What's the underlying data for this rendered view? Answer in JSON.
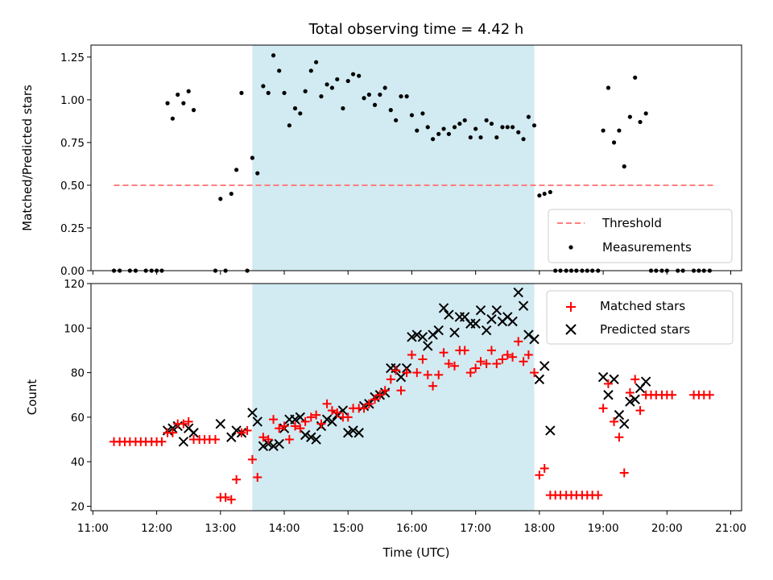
{
  "title": "Total observing time = 4.42 h",
  "x_axis": {
    "label": "Time (UTC)",
    "min": 10.97,
    "max": 21.17,
    "ticks": [
      11,
      12,
      13,
      14,
      15,
      16,
      17,
      18,
      19,
      20,
      21
    ],
    "tick_labels": [
      "11:00",
      "12:00",
      "13:00",
      "14:00",
      "15:00",
      "16:00",
      "17:00",
      "18:00",
      "19:00",
      "20:00",
      "21:00"
    ]
  },
  "observing_window": {
    "start": 13.5,
    "end": 17.92,
    "color": "#add8e6"
  },
  "colors": {
    "threshold": "#ff7f7f",
    "measurements": "#000000",
    "matched": "#ff0000",
    "predicted": "#000000"
  },
  "chart_data": [
    {
      "type": "scatter",
      "ylabel": "Matched/Predicted stars",
      "ylim": [
        0,
        1.32
      ],
      "yticks": [
        0,
        0.25,
        0.5,
        0.75,
        1.0,
        1.25
      ],
      "ytick_labels": [
        "0.00",
        "0.25",
        "0.50",
        "0.75",
        "1.00",
        "1.25"
      ],
      "threshold": {
        "name": "Threshold",
        "value": 0.5,
        "x_start": 11.33,
        "x_end": 20.75
      },
      "legend": {
        "placement": "lower-right",
        "entries": [
          "Threshold",
          "Measurements"
        ]
      },
      "series": [
        {
          "name": "Measurements",
          "x": [
            11.33,
            11.42,
            11.58,
            11.67,
            11.83,
            11.92,
            12.0,
            12.08,
            12.17,
            12.25,
            12.33,
            12.42,
            12.5,
            12.58,
            12.92,
            13.0,
            13.08,
            13.17,
            13.25,
            13.33,
            13.42,
            13.5,
            13.58,
            13.67,
            13.75,
            13.83,
            13.92,
            14.0,
            14.08,
            14.17,
            14.25,
            14.33,
            14.42,
            14.5,
            14.58,
            14.67,
            14.75,
            14.83,
            14.92,
            15.0,
            15.08,
            15.17,
            15.25,
            15.33,
            15.42,
            15.5,
            15.58,
            15.67,
            15.75,
            15.83,
            15.92,
            16.0,
            16.08,
            16.17,
            16.25,
            16.33,
            16.42,
            16.5,
            16.58,
            16.67,
            16.75,
            16.83,
            16.92,
            17.0,
            17.08,
            17.17,
            17.25,
            17.33,
            17.42,
            17.5,
            17.58,
            17.67,
            17.75,
            17.83,
            17.92,
            18.0,
            18.08,
            18.17,
            18.25,
            18.33,
            18.42,
            18.5,
            18.58,
            18.67,
            18.75,
            18.83,
            18.92,
            19.0,
            19.08,
            19.17,
            19.25,
            19.33,
            19.42,
            19.5,
            19.58,
            19.67,
            19.75,
            19.83,
            19.92,
            20.0,
            20.17,
            20.25,
            20.42,
            20.5,
            20.58,
            20.67
          ],
          "y": [
            0,
            0,
            0,
            0,
            0,
            0,
            0,
            0,
            0.98,
            0.89,
            1.03,
            0.98,
            1.05,
            0.94,
            0,
            0.42,
            0,
            0.45,
            0.59,
            1.04,
            0,
            0.66,
            0.57,
            1.08,
            1.04,
            1.26,
            1.17,
            1.04,
            0.85,
            0.95,
            0.92,
            1.05,
            1.17,
            1.22,
            1.02,
            1.09,
            1.07,
            1.12,
            0.95,
            1.11,
            1.15,
            1.14,
            1.01,
            1.03,
            0.97,
            1.03,
            1.07,
            0.94,
            0.88,
            1.02,
            1.02,
            0.91,
            0.82,
            0.92,
            0.84,
            0.77,
            0.8,
            0.83,
            0.8,
            0.84,
            0.86,
            0.88,
            0.78,
            0.83,
            0.78,
            0.88,
            0.86,
            0.78,
            0.84,
            0.84,
            0.84,
            0.81,
            0.77,
            0.9,
            0.85,
            0.44,
            0.45,
            0.46,
            0,
            0,
            0,
            0,
            0,
            0,
            0,
            0,
            0,
            0.82,
            1.07,
            0.75,
            0.82,
            0.61,
            0.9,
            1.13,
            0.87,
            0.92,
            0,
            0,
            0,
            0,
            0,
            0,
            0,
            0,
            0,
            0
          ]
        }
      ]
    },
    {
      "type": "scatter",
      "ylabel": "Count",
      "ylim": [
        18,
        120
      ],
      "yticks": [
        20,
        40,
        60,
        80,
        100,
        120
      ],
      "ytick_labels": [
        "20",
        "40",
        "60",
        "80",
        "100",
        "120"
      ],
      "legend": {
        "placement": "upper-right",
        "entries": [
          "Matched stars",
          "Predicted stars"
        ]
      },
      "series": [
        {
          "name": "Matched stars",
          "marker": "plus",
          "x": [
            11.33,
            11.42,
            11.5,
            11.58,
            11.67,
            11.75,
            11.83,
            11.92,
            12.0,
            12.08,
            12.17,
            12.25,
            12.33,
            12.42,
            12.5,
            12.58,
            12.67,
            12.75,
            12.83,
            12.92,
            13.0,
            13.08,
            13.17,
            13.25,
            13.33,
            13.42,
            13.5,
            13.58,
            13.67,
            13.75,
            13.83,
            13.92,
            14.0,
            14.08,
            14.17,
            14.25,
            14.33,
            14.42,
            14.5,
            14.58,
            14.67,
            14.75,
            14.83,
            14.92,
            15.0,
            15.08,
            15.17,
            15.25,
            15.33,
            15.42,
            15.5,
            15.58,
            15.67,
            15.75,
            15.83,
            15.92,
            16.0,
            16.08,
            16.17,
            16.25,
            16.33,
            16.42,
            16.5,
            16.58,
            16.67,
            16.75,
            16.83,
            16.92,
            17.0,
            17.08,
            17.17,
            17.25,
            17.33,
            17.42,
            17.5,
            17.58,
            17.67,
            17.75,
            17.83,
            17.92,
            18.0,
            18.08,
            18.17,
            18.25,
            18.33,
            18.42,
            18.5,
            18.58,
            18.67,
            18.75,
            18.83,
            18.92,
            19.0,
            19.08,
            19.17,
            19.25,
            19.33,
            19.42,
            19.5,
            19.58,
            19.67,
            19.75,
            19.83,
            19.92,
            20.0,
            20.08,
            20.42,
            20.5,
            20.58,
            20.67
          ],
          "y": [
            49,
            49,
            49,
            49,
            49,
            49,
            49,
            49,
            49,
            49,
            53,
            53,
            57,
            57,
            58,
            50,
            50,
            50,
            50,
            50,
            24,
            24,
            23,
            32,
            53,
            54,
            41,
            33,
            51,
            50,
            59,
            55,
            56,
            50,
            56,
            55,
            58,
            60,
            61,
            57,
            66,
            63,
            62,
            60,
            60,
            64,
            64,
            64,
            66,
            68,
            70,
            72,
            77,
            81,
            72,
            80,
            88,
            80,
            86,
            79,
            74,
            79,
            89,
            84,
            83,
            90,
            90,
            80,
            82,
            85,
            84,
            90,
            84,
            86,
            88,
            87,
            94,
            85,
            88,
            80,
            34,
            37,
            25,
            25,
            25,
            25,
            25,
            25,
            25,
            25,
            25,
            25,
            64,
            75,
            58,
            51,
            35,
            71,
            77,
            63,
            70,
            70,
            70,
            70,
            70,
            70,
            70,
            70,
            70,
            70
          ]
        },
        {
          "name": "Predicted stars",
          "marker": "x",
          "x": [
            12.17,
            12.25,
            12.33,
            12.42,
            12.5,
            12.58,
            13.0,
            13.17,
            13.25,
            13.33,
            13.5,
            13.58,
            13.67,
            13.75,
            13.83,
            13.92,
            14.0,
            14.08,
            14.17,
            14.25,
            14.33,
            14.42,
            14.5,
            14.58,
            14.67,
            14.75,
            14.83,
            14.92,
            15.0,
            15.08,
            15.17,
            15.25,
            15.33,
            15.42,
            15.5,
            15.58,
            15.67,
            15.75,
            15.83,
            15.92,
            16.0,
            16.08,
            16.17,
            16.25,
            16.33,
            16.42,
            16.5,
            16.58,
            16.67,
            16.75,
            16.83,
            16.92,
            17.0,
            17.08,
            17.17,
            17.25,
            17.33,
            17.42,
            17.5,
            17.58,
            17.67,
            17.75,
            17.83,
            17.92,
            18.0,
            18.08,
            18.17,
            19.0,
            19.08,
            19.17,
            19.25,
            19.33,
            19.42,
            19.5,
            19.58,
            19.67
          ],
          "y": [
            54,
            55,
            56,
            49,
            55,
            53,
            57,
            51,
            54,
            53,
            62,
            58,
            47,
            48,
            47,
            48,
            55,
            59,
            59,
            60,
            52,
            51,
            50,
            56,
            59,
            58,
            61,
            63,
            53,
            54,
            53,
            65,
            66,
            69,
            70,
            71,
            82,
            82,
            78,
            82,
            96,
            97,
            96,
            92,
            97,
            99,
            109,
            106,
            98,
            105,
            105,
            102,
            102,
            108,
            99,
            104,
            108,
            103,
            105,
            103,
            116,
            110,
            97,
            95,
            77,
            83,
            54,
            78,
            70,
            77,
            61,
            57,
            67,
            68,
            73,
            76
          ]
        }
      ]
    }
  ]
}
